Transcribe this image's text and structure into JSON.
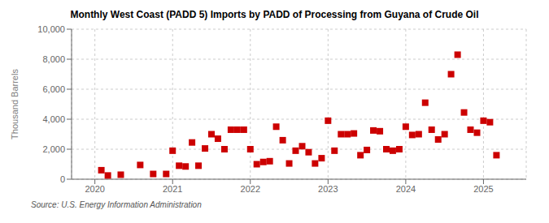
{
  "chart_data": {
    "type": "scatter",
    "title": "Monthly West Coast (PADD 5) Imports by PADD of Processing from Guyana of Crude Oil",
    "ylabel": "Thousand Barrels",
    "annotations": [
      "Source: U.S. Energy Information Administration"
    ],
    "color": "#cc0000",
    "marker": "square",
    "grid": true,
    "xlim": [
      2019.7,
      2025.55
    ],
    "xticks": [
      2020,
      2021,
      2022,
      2023,
      2024,
      2025
    ],
    "ylim": [
      0,
      10000
    ],
    "yticks": [
      0,
      {
        "value": 2000,
        "label": "2,000"
      },
      {
        "value": 4000,
        "label": "4,000"
      },
      {
        "value": 6000,
        "label": "6,000"
      },
      {
        "value": 8000,
        "label": "8,000"
      },
      {
        "value": 10000,
        "label": "10,000"
      }
    ],
    "x": [
      2020.083,
      2020.167,
      2020.333,
      2020.583,
      2020.75,
      2020.917,
      2021.0,
      2021.083,
      2021.167,
      2021.25,
      2021.333,
      2021.417,
      2021.5,
      2021.583,
      2021.667,
      2021.75,
      2021.833,
      2021.917,
      2022.0,
      2022.083,
      2022.167,
      2022.25,
      2022.333,
      2022.417,
      2022.5,
      2022.583,
      2022.667,
      2022.75,
      2022.833,
      2022.917,
      2023.0,
      2023.083,
      2023.167,
      2023.25,
      2023.333,
      2023.417,
      2023.5,
      2023.583,
      2023.667,
      2023.75,
      2023.833,
      2023.917,
      2024.0,
      2024.083,
      2024.167,
      2024.25,
      2024.333,
      2024.417,
      2024.5,
      2024.583,
      2024.667,
      2024.75,
      2024.833,
      2024.917,
      2025.0,
      2025.083,
      2025.167
    ],
    "values": [
      600,
      250,
      300,
      950,
      350,
      350,
      1900,
      900,
      850,
      2450,
      900,
      2050,
      3000,
      2700,
      2000,
      3300,
      3300,
      3300,
      2000,
      1000,
      1150,
      1200,
      3500,
      2600,
      1050,
      1900,
      2200,
      1800,
      1050,
      1400,
      3900,
      1900,
      3000,
      3000,
      3050,
      1600,
      1950,
      3250,
      3200,
      2000,
      1900,
      2000,
      3500,
      2950,
      3000,
      5100,
      3300,
      2650,
      3000,
      7000,
      8300,
      4450,
      3300,
      3100,
      3900,
      3800,
      1600
    ]
  }
}
